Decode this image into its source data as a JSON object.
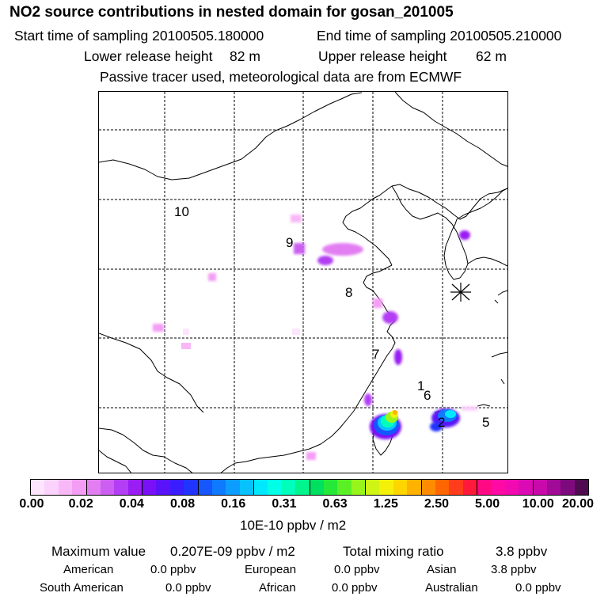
{
  "header": {
    "title": "NO2 source contributions in nested domain for gosan_201005",
    "start_label": "Start time of sampling 20100505.180000",
    "end_label": "End time of sampling 20100505.210000",
    "lower_label": "Lower release height",
    "lower_value": "82 m",
    "upper_label": "Upper release height",
    "upper_value": "62 m",
    "tracer_note": "Passive tracer used, meteorological data are from ECMWF"
  },
  "map": {
    "region_labels": [
      "10",
      "9",
      "8",
      "7",
      "1",
      "6",
      "2",
      "5"
    ],
    "receptor_marker": "asterisk-receptor-icon",
    "coastline_color": "#000000",
    "grid_color": "#000000"
  },
  "colorbar": {
    "colors": [
      "#fde6fd",
      "#fbd2fb",
      "#f8b8f8",
      "#f49df4",
      "#e27ef2",
      "#cc5ef2",
      "#b33ef4",
      "#9a1df4",
      "#7a10f6",
      "#5a12fa",
      "#3a1dfe",
      "#2133ff",
      "#1656ff",
      "#0f7aff",
      "#0b9dff",
      "#08c2ff",
      "#00e8ff",
      "#00ffe6",
      "#00ffbb",
      "#00f58d",
      "#00e060",
      "#25e838",
      "#5af025",
      "#98f51c",
      "#cff514",
      "#f5f00a",
      "#ffd500",
      "#ffb300",
      "#ff8c00",
      "#ff6500",
      "#ff3c1c",
      "#ff1a3c",
      "#ff0a82",
      "#ff0aa5",
      "#f00ab0",
      "#dc0ab4",
      "#c80aaa",
      "#a00a96",
      "#7d0a7d",
      "#500a50"
    ],
    "ticks": [
      "0.00",
      "0.02",
      "0.04",
      "0.08",
      "0.16",
      "0.31",
      "0.63",
      "1.25",
      "2.50",
      "5.00",
      "10.00",
      "20.00"
    ],
    "units": "10E-10 ppbv / m2"
  },
  "summary": {
    "max_label": "Maximum value",
    "max_value": "0.207E-09 ppbv / m2",
    "total_label": "Total mixing ratio",
    "total_value": "3.8 ppbv",
    "regions": [
      {
        "name": "American",
        "value": "0.0 ppbv"
      },
      {
        "name": "European",
        "value": "0.0 ppbv"
      },
      {
        "name": "Asian",
        "value": "3.8 ppbv"
      },
      {
        "name": "South American",
        "value": "0.0 ppbv"
      },
      {
        "name": "African",
        "value": "0.0 ppbv"
      },
      {
        "name": "Australian",
        "value": "0.0 ppbv"
      }
    ]
  }
}
